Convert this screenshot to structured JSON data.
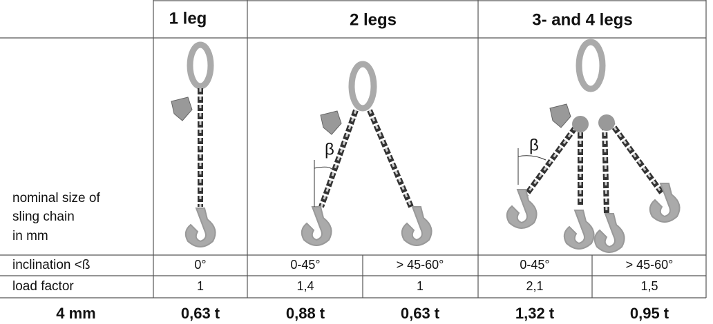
{
  "table": {
    "header": [
      "1 leg",
      "2 legs",
      "3- and 4 legs"
    ],
    "row_label": [
      "nominal size of",
      "sling chain",
      "in mm"
    ],
    "angle_symbols": [
      "β",
      "β"
    ],
    "rows": [
      {
        "label": "inclination <ß",
        "values": [
          "0°",
          "0-45°",
          "> 45-60°",
          "0-45°",
          "> 45-60°"
        ]
      },
      {
        "label": "load factor",
        "values": [
          "1",
          "1,4",
          "1",
          "2,1",
          "1,5"
        ]
      },
      {
        "label": "4 mm",
        "values": [
          "0,63 t",
          "0,88 t",
          "0,63 t",
          "1,32 t",
          "0,95 t"
        ]
      }
    ]
  }
}
